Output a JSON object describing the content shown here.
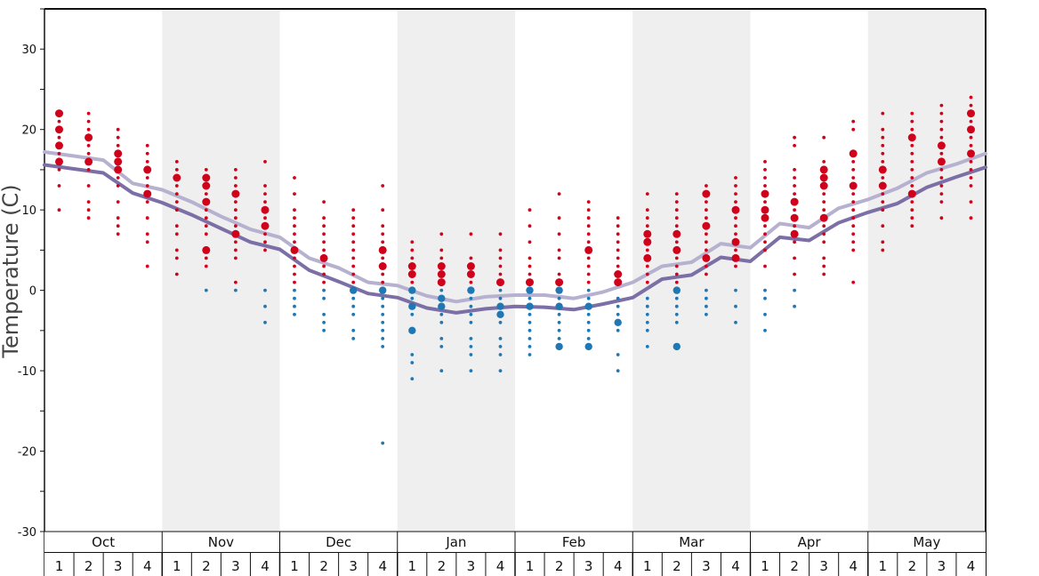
{
  "chart_data": {
    "type": "scatter",
    "ylabel": "Temperature (C)",
    "ylim": [
      -30,
      35
    ],
    "y_ticks": [
      30,
      20,
      10,
      0,
      -10,
      -20,
      -30
    ],
    "months": [
      "Oct",
      "Nov",
      "Dec",
      "Jan",
      "Feb",
      "Mar",
      "Apr",
      "May"
    ],
    "weeks": [
      "1",
      "2",
      "3",
      "4"
    ],
    "shaded_months": [
      "Nov",
      "Jan",
      "Mar",
      "May"
    ],
    "colors": {
      "warm_dots": "#d0021b",
      "cold_dots": "#1f77b4",
      "upper_line": "#b7b1d0",
      "lower_line": "#7b6fa6",
      "shade": "#efefef"
    },
    "lines": [
      {
        "color_key": "upper_line",
        "y": [
          17.2,
          16.7,
          16.2,
          13.3,
          12.5,
          11,
          9.2,
          7.6,
          6.6,
          4,
          2.8,
          1,
          0.6,
          -0.7,
          -1.4,
          -0.8,
          -0.6,
          -0.6,
          -1,
          -0.2,
          1,
          3,
          3.5,
          5.8,
          5.3,
          8.3,
          7.8,
          10.2,
          11.3,
          12.7,
          14.6,
          15.7,
          17
        ]
      },
      {
        "color_key": "lower_line",
        "y": [
          15.6,
          15.1,
          14.6,
          12.1,
          10.9,
          9.4,
          7.7,
          6,
          5.1,
          2.5,
          1.1,
          -0.4,
          -0.9,
          -2.2,
          -2.8,
          -2.3,
          -2,
          -2.1,
          -2.4,
          -1.7,
          -0.9,
          1.4,
          1.9,
          4.1,
          3.6,
          6.6,
          6.2,
          8.4,
          9.7,
          10.8,
          12.8,
          14.1,
          15.3
        ]
      }
    ],
    "dots": [
      {
        "week": 0,
        "warm": [
          22,
          21,
          20,
          19,
          18,
          17,
          16,
          15,
          13,
          10
        ],
        "cold": [],
        "big": [
          22,
          20,
          18,
          16
        ]
      },
      {
        "week": 1,
        "warm": [
          22,
          21,
          20,
          19,
          18,
          17,
          16,
          15,
          13,
          11,
          10,
          9
        ],
        "cold": [],
        "big": [
          19,
          16
        ]
      },
      {
        "week": 2,
        "warm": [
          20,
          19,
          18,
          17,
          16,
          15,
          14,
          13,
          11,
          9,
          8,
          7
        ],
        "cold": [],
        "big": [
          17,
          16,
          15
        ]
      },
      {
        "week": 3,
        "warm": [
          18,
          17,
          16,
          15,
          14,
          13,
          12,
          11,
          9,
          7,
          6,
          3
        ],
        "cold": [],
        "big": [
          15,
          12
        ]
      },
      {
        "week": 4,
        "warm": [
          16,
          15,
          14,
          13,
          12,
          11,
          10,
          8,
          7,
          5,
          4,
          2
        ],
        "cold": [],
        "big": [
          14
        ]
      },
      {
        "week": 5,
        "warm": [
          15,
          14,
          13,
          12,
          11,
          10,
          9,
          8,
          7,
          5,
          4,
          3
        ],
        "cold": [
          0
        ],
        "big": [
          14,
          13,
          11,
          5
        ]
      },
      {
        "week": 6,
        "warm": [
          15,
          14,
          13,
          12,
          11,
          10,
          9,
          8,
          7,
          6,
          5,
          4,
          1
        ],
        "cold": [
          0
        ],
        "big": [
          12,
          7
        ]
      },
      {
        "week": 7,
        "warm": [
          16,
          13,
          12,
          11,
          10,
          9,
          8,
          7,
          6,
          5
        ],
        "cold": [
          0,
          -2,
          -4
        ],
        "big": [
          10,
          8
        ]
      },
      {
        "week": 8,
        "warm": [
          14,
          12,
          10,
          9,
          8,
          7,
          6,
          5,
          4,
          3,
          2,
          1
        ],
        "cold": [
          0,
          -1,
          -2,
          -3
        ],
        "big": [
          5
        ]
      },
      {
        "week": 9,
        "warm": [
          11,
          9,
          8,
          7,
          6,
          5,
          4,
          3,
          2,
          1
        ],
        "cold": [
          0,
          -1,
          -3,
          -4,
          -5
        ],
        "big": [
          4
        ]
      },
      {
        "week": 10,
        "warm": [
          10,
          9,
          8,
          7,
          6,
          5,
          4,
          3,
          2,
          1
        ],
        "cold": [
          0,
          -1,
          -2,
          -3,
          -5,
          -6
        ],
        "big": [
          0
        ]
      },
      {
        "week": 11,
        "warm": [
          13,
          10,
          8,
          7,
          6,
          5,
          4,
          3,
          2,
          1
        ],
        "cold": [
          0,
          -1,
          -2,
          -3,
          -4,
          -5,
          -6,
          -7,
          -19
        ],
        "big": [
          5,
          3,
          0
        ]
      },
      {
        "week": 12,
        "warm": [
          6,
          5,
          4,
          3,
          2,
          1
        ],
        "cold": [
          0,
          -1,
          -2,
          -3,
          -5,
          -8,
          -9,
          -11
        ],
        "big": [
          3,
          2,
          0,
          -2,
          -5
        ]
      },
      {
        "week": 13,
        "warm": [
          7,
          5,
          4,
          3,
          2,
          1
        ],
        "cold": [
          0,
          -1,
          -2,
          -3,
          -4,
          -6,
          -7,
          -10
        ],
        "big": [
          3,
          2,
          1,
          -1,
          -2
        ]
      },
      {
        "week": 14,
        "warm": [
          7,
          4,
          3,
          2,
          1
        ],
        "cold": [
          0,
          -1,
          -2,
          -3,
          -4,
          -6,
          -7,
          -8,
          -10
        ],
        "big": [
          3,
          2,
          0
        ]
      },
      {
        "week": 15,
        "warm": [
          7,
          5,
          4,
          3,
          2,
          1
        ],
        "cold": [
          0,
          -1,
          -2,
          -3,
          -4,
          -6,
          -7,
          -8,
          -10
        ],
        "big": [
          1,
          -2,
          -3
        ]
      },
      {
        "week": 16,
        "warm": [
          10,
          8,
          6,
          4,
          3,
          2,
          1
        ],
        "cold": [
          0,
          -1,
          -2,
          -3,
          -4,
          -5,
          -6,
          -7,
          -8
        ],
        "big": [
          1,
          0,
          -2
        ]
      },
      {
        "week": 17,
        "warm": [
          12,
          9,
          7,
          5,
          4,
          2,
          1
        ],
        "cold": [
          0,
          -1,
          -2,
          -3,
          -4,
          -5,
          -6,
          -7
        ],
        "big": [
          1,
          0,
          -2,
          -7
        ]
      },
      {
        "week": 18,
        "warm": [
          11,
          10,
          9,
          8,
          7,
          6,
          5,
          4,
          3,
          2,
          1
        ],
        "cold": [
          0,
          -1,
          -2,
          -3,
          -4,
          -5,
          -6,
          -7
        ],
        "big": [
          5,
          -2,
          -7
        ]
      },
      {
        "week": 19,
        "warm": [
          9,
          8,
          7,
          6,
          5,
          4,
          3,
          2,
          1
        ],
        "cold": [
          -1,
          -2,
          -3,
          -4,
          -5,
          -8,
          -10
        ],
        "big": [
          2,
          1,
          -4
        ]
      },
      {
        "week": 20,
        "warm": [
          12,
          10,
          9,
          8,
          7,
          6,
          5,
          4,
          3,
          2,
          1
        ],
        "cold": [
          -1,
          -2,
          -3,
          -4,
          -5,
          -7
        ],
        "big": [
          7,
          6,
          4
        ]
      },
      {
        "week": 21,
        "warm": [
          12,
          11,
          10,
          9,
          8,
          7,
          6,
          5,
          4,
          3,
          2,
          1
        ],
        "cold": [
          0,
          -1,
          -2,
          -3,
          -4,
          -7
        ],
        "big": [
          7,
          5,
          0,
          -7
        ]
      },
      {
        "week": 22,
        "warm": [
          13,
          12,
          11,
          10,
          9,
          8,
          7,
          6,
          5,
          4,
          3,
          2
        ],
        "cold": [
          0,
          -1,
          -2,
          -3
        ],
        "big": [
          12,
          8,
          4
        ]
      },
      {
        "week": 23,
        "warm": [
          14,
          13,
          12,
          11,
          10,
          9,
          8,
          7,
          6,
          5,
          4,
          3
        ],
        "cold": [
          0,
          -2,
          -4
        ],
        "big": [
          10,
          6,
          4
        ]
      },
      {
        "week": 24,
        "warm": [
          16,
          15,
          14,
          13,
          12,
          11,
          10,
          9,
          8,
          7,
          6,
          5,
          3
        ],
        "cold": [
          0,
          -1,
          -3,
          -5
        ],
        "big": [
          12,
          10,
          9
        ]
      },
      {
        "week": 25,
        "warm": [
          19,
          18,
          15,
          14,
          13,
          12,
          11,
          10,
          9,
          8,
          7,
          6,
          4,
          2
        ],
        "cold": [
          0,
          -2
        ],
        "big": [
          11,
          9,
          7
        ]
      },
      {
        "week": 26,
        "warm": [
          19,
          16,
          15,
          14,
          13,
          12,
          11,
          10,
          9,
          8,
          7,
          6,
          4,
          3,
          2
        ],
        "cold": [],
        "big": [
          15,
          14,
          13,
          9
        ]
      },
      {
        "week": 27,
        "warm": [
          21,
          20,
          17,
          16,
          15,
          14,
          13,
          12,
          11,
          10,
          9,
          8,
          7,
          6,
          5,
          1
        ],
        "cold": [],
        "big": [
          17,
          13
        ]
      },
      {
        "week": 28,
        "warm": [
          22,
          20,
          19,
          18,
          17,
          16,
          15,
          14,
          13,
          12,
          11,
          10,
          8,
          6,
          5
        ],
        "cold": [],
        "big": [
          15,
          13
        ]
      },
      {
        "week": 29,
        "warm": [
          22,
          21,
          20,
          19,
          18,
          17,
          16,
          15,
          14,
          13,
          12,
          11,
          10,
          9,
          8
        ],
        "cold": [],
        "big": [
          19,
          12
        ]
      },
      {
        "week": 30,
        "warm": [
          23,
          22,
          21,
          20,
          19,
          18,
          17,
          16,
          15,
          14,
          13,
          12,
          11,
          9
        ],
        "cold": [],
        "big": [
          18,
          16
        ]
      },
      {
        "week": 31,
        "warm": [
          24,
          23,
          22,
          21,
          20,
          19,
          18,
          17,
          16,
          15,
          14,
          13,
          11,
          9
        ],
        "cold": [],
        "big": [
          22,
          20,
          17
        ]
      }
    ]
  }
}
